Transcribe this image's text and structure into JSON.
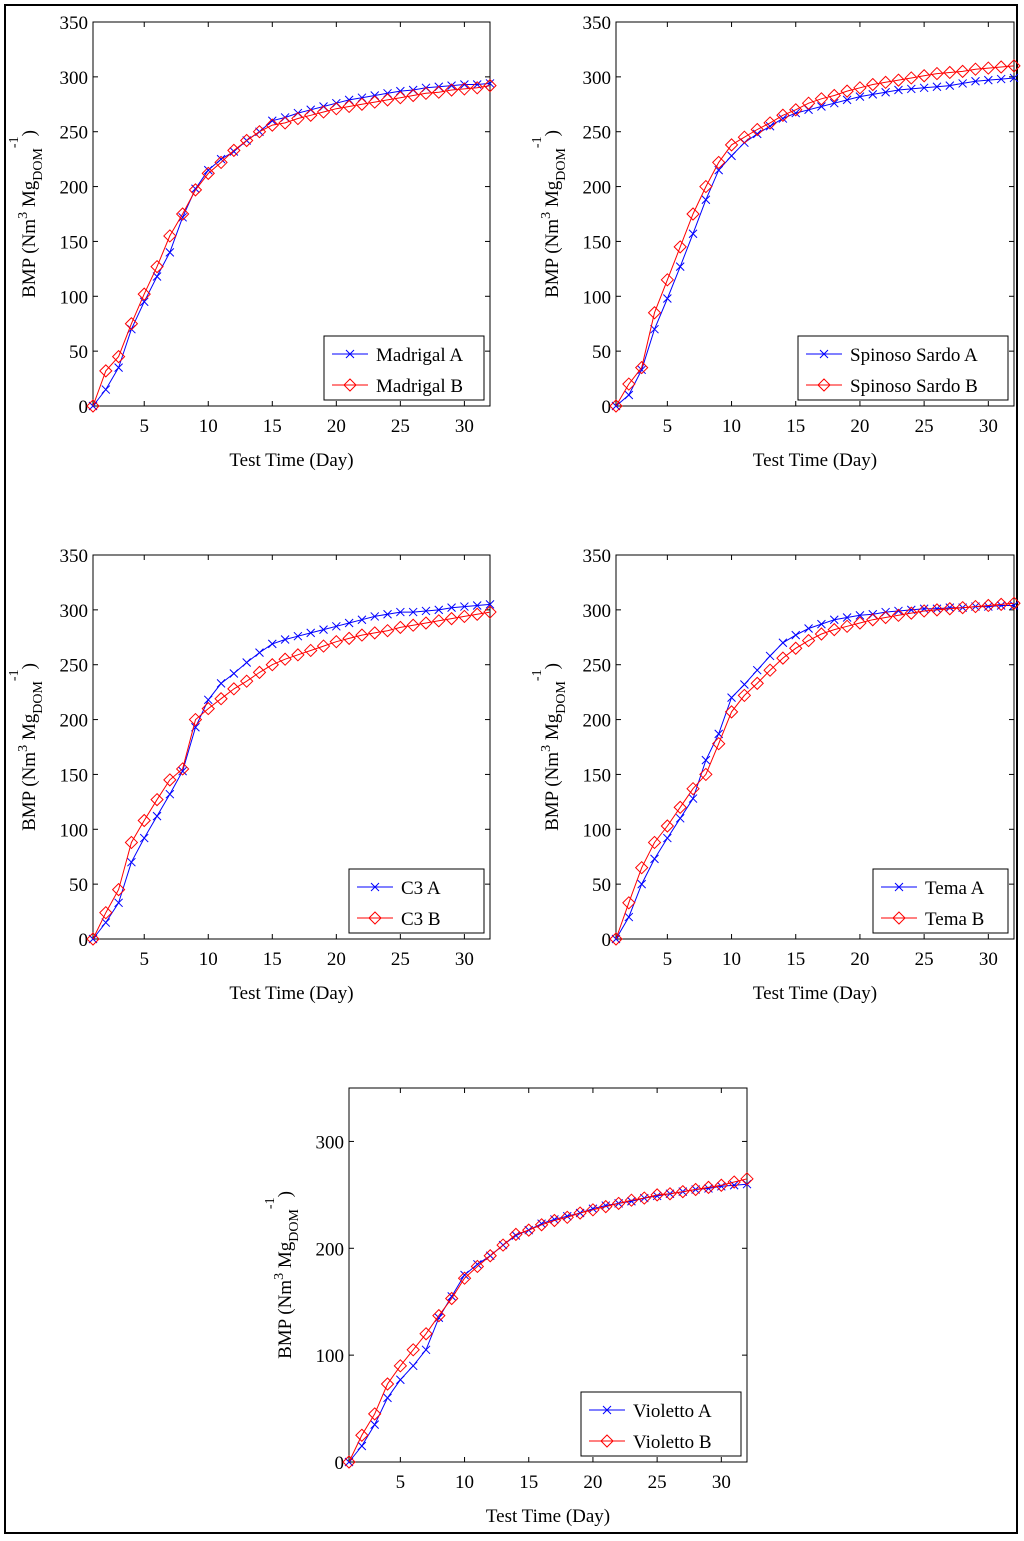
{
  "axis": {
    "xlabel": "Test Time (Day)",
    "ylabel_main": "BMP (Nm",
    "ylabel_sup3": "3",
    "ylabel_mid": " Mg",
    "ylabel_sub": "DOM",
    "ylabel_sup": "-1",
    "ylabel_close": ")"
  },
  "colors": {
    "A": "#0000ff",
    "B": "#ff0000"
  },
  "chart_data": [
    {
      "type": "line",
      "xlim": [
        1,
        32
      ],
      "ylim": [
        0,
        350
      ],
      "xticks": [
        5,
        10,
        15,
        20,
        25,
        30
      ],
      "yticks": [
        0,
        50,
        100,
        150,
        200,
        250,
        300,
        350
      ],
      "grid": false,
      "legend": "bottom-right",
      "x": [
        1,
        2,
        3,
        4,
        5,
        6,
        7,
        8,
        9,
        10,
        11,
        12,
        13,
        14,
        15,
        16,
        17,
        18,
        19,
        20,
        21,
        22,
        23,
        24,
        25,
        26,
        27,
        28,
        29,
        30,
        31,
        32
      ],
      "series": [
        {
          "name": "Madrigal A",
          "marker": "x",
          "values": [
            0,
            15,
            35,
            70,
            95,
            118,
            140,
            172,
            198,
            215,
            225,
            232,
            242,
            250,
            260,
            263,
            267,
            270,
            273,
            276,
            279,
            281,
            283,
            285,
            287,
            288,
            290,
            291,
            292,
            293,
            293,
            294
          ]
        },
        {
          "name": "Madrigal B",
          "marker": "diamond",
          "values": [
            0,
            32,
            45,
            75,
            102,
            127,
            155,
            175,
            197,
            212,
            222,
            233,
            242,
            250,
            256,
            258,
            262,
            265,
            268,
            271,
            273,
            275,
            277,
            279,
            281,
            283,
            285,
            286,
            288,
            289,
            290,
            292
          ]
        }
      ]
    },
    {
      "type": "line",
      "xlim": [
        1,
        32
      ],
      "ylim": [
        0,
        350
      ],
      "xticks": [
        5,
        10,
        15,
        20,
        25,
        30
      ],
      "yticks": [
        0,
        50,
        100,
        150,
        200,
        250,
        300,
        350
      ],
      "grid": false,
      "legend": "bottom-right",
      "x": [
        1,
        2,
        3,
        4,
        5,
        6,
        7,
        8,
        9,
        10,
        11,
        12,
        13,
        14,
        15,
        16,
        17,
        18,
        19,
        20,
        21,
        22,
        23,
        24,
        25,
        26,
        27,
        28,
        29,
        30,
        31,
        32
      ],
      "series": [
        {
          "name": "Spinoso Sardo A",
          "marker": "x",
          "values": [
            0,
            10,
            33,
            70,
            98,
            127,
            157,
            188,
            215,
            228,
            240,
            248,
            255,
            262,
            267,
            270,
            273,
            276,
            279,
            282,
            284,
            286,
            288,
            289,
            290,
            291,
            292,
            294,
            296,
            297,
            298,
            299
          ]
        },
        {
          "name": "Spinoso Sardo B",
          "marker": "diamond",
          "values": [
            0,
            20,
            35,
            85,
            115,
            145,
            175,
            200,
            222,
            238,
            245,
            252,
            258,
            265,
            270,
            276,
            280,
            283,
            287,
            290,
            293,
            295,
            297,
            299,
            301,
            303,
            304,
            305,
            307,
            308,
            309,
            310
          ]
        }
      ]
    },
    {
      "type": "line",
      "xlim": [
        1,
        32
      ],
      "ylim": [
        0,
        350
      ],
      "xticks": [
        5,
        10,
        15,
        20,
        25,
        30
      ],
      "yticks": [
        0,
        50,
        100,
        150,
        200,
        250,
        300,
        350
      ],
      "grid": false,
      "legend": "bottom-right",
      "x": [
        1,
        2,
        3,
        4,
        5,
        6,
        7,
        8,
        9,
        10,
        11,
        12,
        13,
        14,
        15,
        16,
        17,
        18,
        19,
        20,
        21,
        22,
        23,
        24,
        25,
        26,
        27,
        28,
        29,
        30,
        31,
        32
      ],
      "series": [
        {
          "name": "C3 A",
          "marker": "x",
          "values": [
            0,
            15,
            33,
            70,
            92,
            112,
            132,
            153,
            193,
            218,
            233,
            242,
            252,
            261,
            269,
            273,
            276,
            279,
            282,
            285,
            288,
            291,
            294,
            296,
            298,
            298,
            299,
            300,
            302,
            303,
            304,
            305
          ]
        },
        {
          "name": "C3 B",
          "marker": "diamond",
          "values": [
            0,
            24,
            45,
            88,
            108,
            127,
            145,
            155,
            200,
            210,
            219,
            228,
            235,
            243,
            250,
            255,
            259,
            263,
            267,
            271,
            274,
            277,
            279,
            281,
            284,
            286,
            288,
            290,
            292,
            294,
            296,
            298
          ]
        }
      ]
    },
    {
      "type": "line",
      "xlim": [
        1,
        32
      ],
      "ylim": [
        0,
        350
      ],
      "xticks": [
        5,
        10,
        15,
        20,
        25,
        30
      ],
      "yticks": [
        0,
        50,
        100,
        150,
        200,
        250,
        300,
        350
      ],
      "grid": false,
      "legend": "bottom-right",
      "x": [
        1,
        2,
        3,
        4,
        5,
        6,
        7,
        8,
        9,
        10,
        11,
        12,
        13,
        14,
        15,
        16,
        17,
        18,
        19,
        20,
        21,
        22,
        23,
        24,
        25,
        26,
        27,
        28,
        29,
        30,
        31,
        32
      ],
      "series": [
        {
          "name": "Tema A",
          "marker": "x",
          "values": [
            0,
            20,
            50,
            73,
            92,
            110,
            128,
            163,
            187,
            220,
            232,
            245,
            258,
            270,
            277,
            283,
            287,
            291,
            293,
            295,
            296,
            298,
            299,
            300,
            301,
            301,
            302,
            302,
            303,
            303,
            304,
            304
          ]
        },
        {
          "name": "Tema B",
          "marker": "diamond",
          "values": [
            0,
            33,
            65,
            88,
            103,
            120,
            137,
            150,
            178,
            207,
            222,
            233,
            245,
            256,
            265,
            272,
            278,
            282,
            285,
            288,
            291,
            293,
            295,
            297,
            299,
            300,
            301,
            302,
            303,
            304,
            305,
            306
          ]
        }
      ]
    },
    {
      "type": "line",
      "xlim": [
        1,
        32
      ],
      "ylim": [
        0,
        350
      ],
      "xticks": [
        5,
        10,
        15,
        20,
        25,
        30
      ],
      "yticks": [
        0,
        100,
        200,
        300
      ],
      "grid": false,
      "legend": "bottom-right",
      "x": [
        1,
        2,
        3,
        4,
        5,
        6,
        7,
        8,
        9,
        10,
        11,
        12,
        13,
        14,
        15,
        16,
        17,
        18,
        19,
        20,
        21,
        22,
        23,
        24,
        25,
        26,
        27,
        28,
        29,
        30,
        31,
        32
      ],
      "series": [
        {
          "name": "Violetto A",
          "marker": "x",
          "values": [
            0,
            15,
            35,
            60,
            77,
            90,
            105,
            135,
            155,
            175,
            185,
            193,
            203,
            212,
            217,
            223,
            227,
            230,
            233,
            237,
            240,
            242,
            244,
            247,
            249,
            251,
            253,
            255,
            256,
            258,
            259,
            260
          ]
        },
        {
          "name": "Violetto B",
          "marker": "diamond",
          "values": [
            0,
            25,
            45,
            73,
            90,
            105,
            120,
            137,
            153,
            172,
            183,
            193,
            203,
            213,
            217,
            222,
            226,
            229,
            233,
            236,
            239,
            242,
            245,
            247,
            250,
            251,
            253,
            255,
            257,
            259,
            262,
            265
          ]
        }
      ]
    }
  ]
}
